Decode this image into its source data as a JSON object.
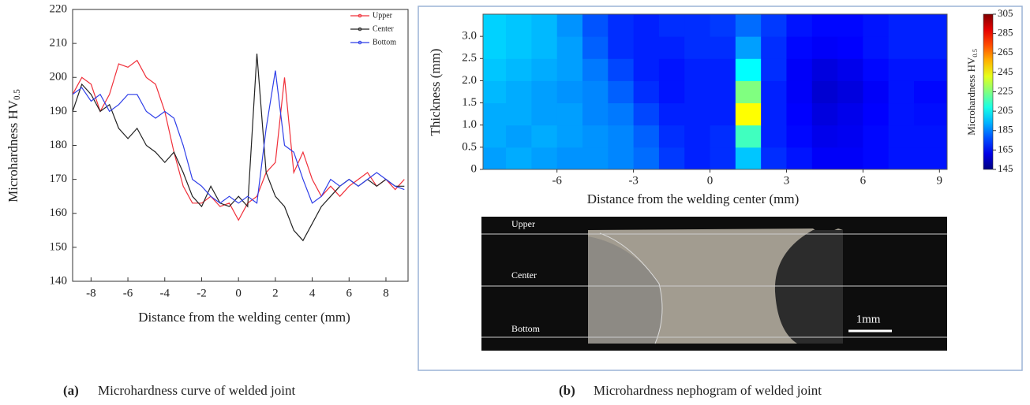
{
  "chart_data": [
    {
      "type": "line",
      "ylabel": "Microhardness  HV",
      "ylabel_sub": "0.5",
      "xlabel": "Distance from the welding center (mm)",
      "caption_label": "(a)",
      "caption": "Microhardness curve of welded joint",
      "xlim": [
        -9,
        9.2
      ],
      "ylim": [
        140,
        220
      ],
      "xticks": [
        -8,
        -6,
        -4,
        -2,
        0,
        2,
        4,
        6,
        8
      ],
      "yticks": [
        140,
        150,
        160,
        170,
        180,
        190,
        200,
        210,
        220
      ],
      "x": [
        -9,
        -8.5,
        -8,
        -7.5,
        -7,
        -6.5,
        -6,
        -5.5,
        -5,
        -4.5,
        -4,
        -3.5,
        -3,
        -2.5,
        -2,
        -1.5,
        -1,
        -0.5,
        0,
        0.5,
        1,
        1.5,
        2,
        2.5,
        3,
        3.5,
        4,
        4.5,
        5,
        5.5,
        6,
        6.5,
        7,
        7.5,
        8,
        8.5,
        9
      ],
      "series": [
        {
          "name": "Upper",
          "color": "#f0303a",
          "values": [
            195,
            200,
            198,
            190,
            195,
            204,
            203,
            205,
            200,
            198,
            190,
            178,
            168,
            163,
            163,
            165,
            162,
            163,
            158,
            163,
            165,
            172,
            175,
            200,
            172,
            178,
            170,
            165,
            168,
            165,
            168,
            170,
            172,
            168,
            170,
            167,
            170
          ]
        },
        {
          "name": "Center",
          "color": "#222222",
          "values": [
            190,
            198,
            195,
            190,
            192,
            185,
            182,
            185,
            180,
            178,
            175,
            178,
            172,
            165,
            162,
            168,
            163,
            162,
            165,
            162,
            207,
            172,
            165,
            162,
            155,
            152,
            157,
            162,
            165,
            168,
            170,
            168,
            170,
            168,
            170,
            168,
            168
          ]
        },
        {
          "name": "Bottom",
          "color": "#2f3fe8",
          "values": [
            195,
            197,
            193,
            195,
            190,
            192,
            195,
            195,
            190,
            188,
            190,
            188,
            180,
            170,
            168,
            165,
            163,
            165,
            163,
            165,
            163,
            185,
            202,
            180,
            178,
            170,
            163,
            165,
            170,
            168,
            170,
            168,
            170,
            172,
            170,
            168,
            167
          ]
        }
      ]
    },
    {
      "type": "heatmap",
      "ylabel": "Thickness  (mm)",
      "xlabel": "Distance  from  the welding  center  (mm)",
      "colorbar_label": "Microhardness  HV",
      "colorbar_label_sub": "0.5",
      "caption_label": "(b)",
      "caption": "Microhardness nephogram of welded joint",
      "xlim": [
        -8.9,
        9.3
      ],
      "ylim": [
        0,
        3.5
      ],
      "zlim": [
        145,
        305
      ],
      "xticks": [
        -6,
        -3,
        0,
        3,
        6,
        9
      ],
      "yticks": [
        0,
        0.5,
        {
          "value": 1,
          "label": "1.0"
        },
        1.5,
        {
          "value": 2,
          "label": "2.0"
        },
        2.5,
        {
          "value": 3,
          "label": "3.0"
        }
      ],
      "zticks": [
        145,
        165,
        185,
        205,
        225,
        245,
        265,
        285,
        305
      ],
      "x": [
        -8.5,
        -7.5,
        -6.5,
        -5.5,
        -4.5,
        -3.5,
        -2.5,
        -1.5,
        -0.5,
        0.5,
        1.5,
        2.5,
        3.5,
        4.5,
        5.5,
        6.5,
        7.5,
        8.5
      ],
      "y": [
        0.25,
        0.75,
        1.25,
        1.75,
        2.25,
        2.75,
        3.25
      ],
      "z": [
        [
          190,
          192,
          190,
          188,
          188,
          186,
          182,
          174,
          170,
          172,
          196,
          172,
          168,
          164,
          164,
          166,
          168,
          168
        ],
        [
          192,
          190,
          192,
          190,
          188,
          186,
          180,
          172,
          170,
          172,
          215,
          170,
          166,
          162,
          163,
          166,
          168,
          168
        ],
        [
          192,
          192,
          190,
          190,
          186,
          184,
          176,
          170,
          170,
          170,
          245,
          170,
          165,
          160,
          162,
          165,
          168,
          167
        ],
        [
          194,
          192,
          190,
          188,
          186,
          180,
          172,
          168,
          170,
          170,
          225,
          170,
          164,
          158,
          160,
          164,
          168,
          166
        ],
        [
          196,
          194,
          192,
          190,
          184,
          176,
          170,
          168,
          170,
          170,
          205,
          172,
          164,
          160,
          162,
          166,
          168,
          168
        ],
        [
          198,
          196,
          194,
          190,
          180,
          172,
          170,
          170,
          172,
          172,
          190,
          172,
          166,
          164,
          165,
          168,
          170,
          170
        ],
        [
          198,
          196,
          194,
          188,
          178,
          172,
          170,
          172,
          172,
          174,
          182,
          174,
          168,
          166,
          166,
          168,
          170,
          170
        ]
      ],
      "micrograph": {
        "labels": [
          "Upper",
          "Center",
          "Bottom"
        ],
        "scale_bar": "1mm"
      }
    }
  ]
}
